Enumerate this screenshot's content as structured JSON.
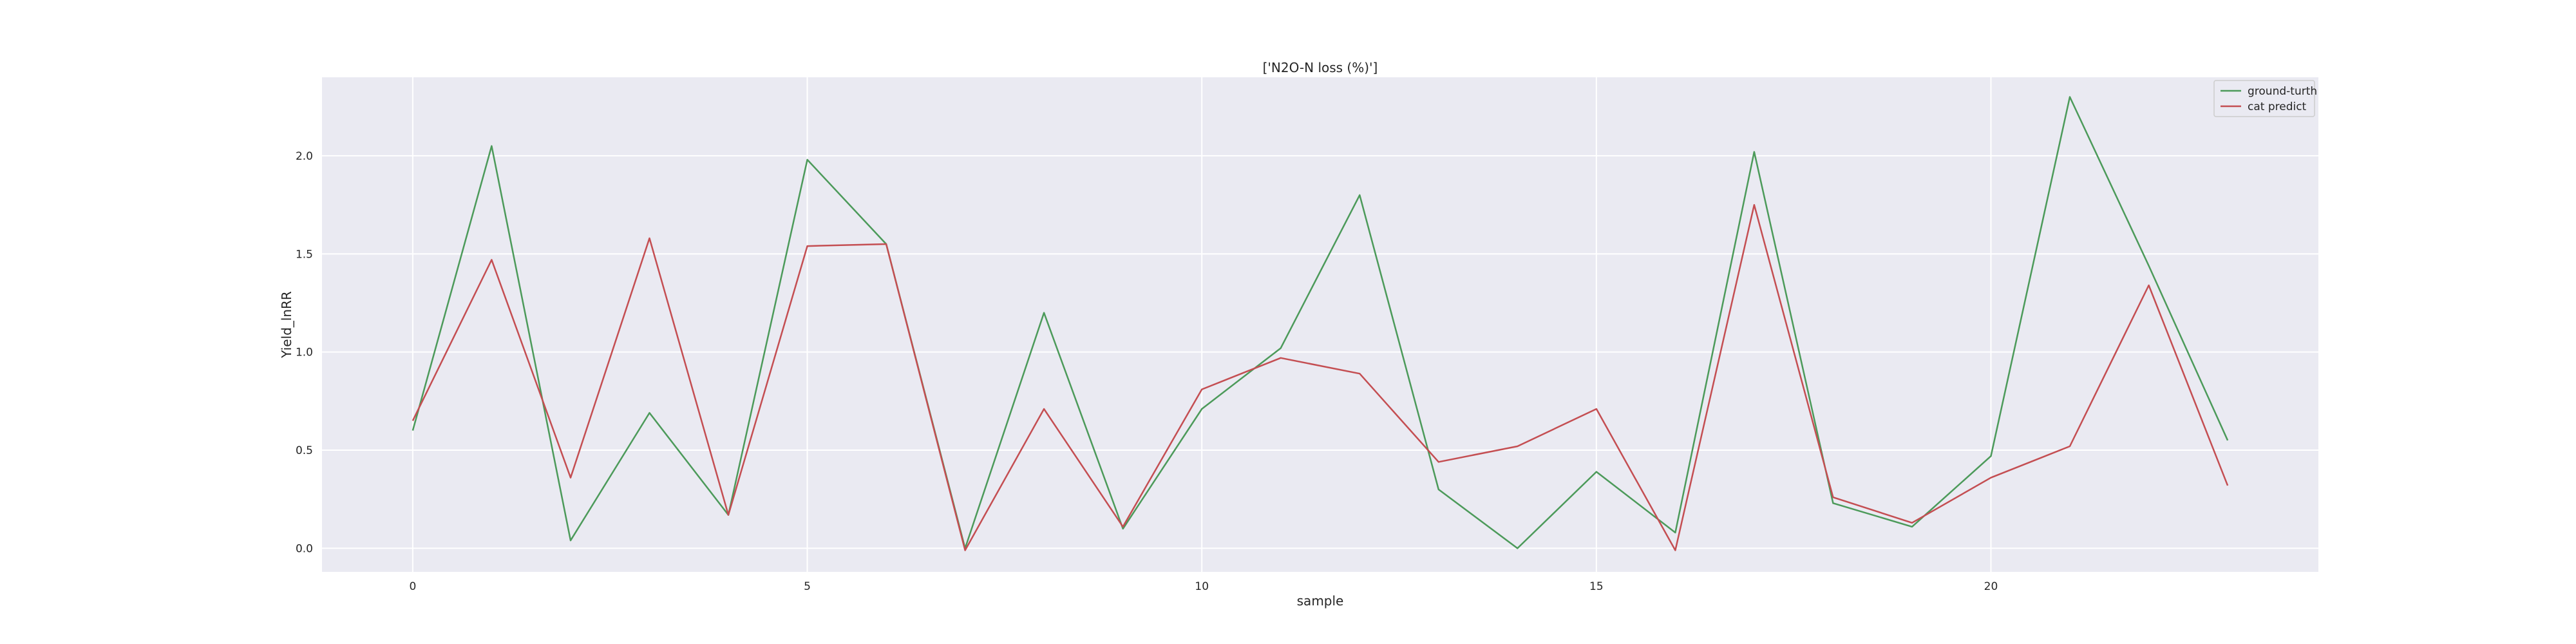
{
  "chart_data": {
    "type": "line",
    "title": "['N2O-N loss (%)']",
    "xlabel": "sample",
    "ylabel": "Yield_lnRR",
    "xlim": [
      -1.15,
      24.15
    ],
    "ylim": [
      -0.12,
      2.4
    ],
    "x_ticks": [
      0,
      5,
      10,
      15,
      20
    ],
    "y_ticks": [
      0.0,
      0.5,
      1.0,
      1.5,
      2.0
    ],
    "x_tick_labels": [
      "0",
      "5",
      "10",
      "15",
      "20"
    ],
    "y_tick_labels": [
      "0.0",
      "0.5",
      "1.0",
      "1.5",
      "2.0"
    ],
    "grid": true,
    "legend_position": "top-right",
    "x": [
      0,
      1,
      2,
      3,
      4,
      5,
      6,
      7,
      8,
      9,
      10,
      11,
      12,
      13,
      14,
      15,
      16,
      17,
      18,
      19,
      20,
      21,
      22,
      23
    ],
    "series": [
      {
        "name": "ground-turth",
        "color": "#4c9a5a",
        "values": [
          0.6,
          2.05,
          0.04,
          0.69,
          0.17,
          1.98,
          1.55,
          0.0,
          1.2,
          0.1,
          0.71,
          1.02,
          1.8,
          0.3,
          0.0,
          0.39,
          0.08,
          2.02,
          0.23,
          0.11,
          0.47,
          2.3,
          1.44,
          0.55
        ]
      },
      {
        "name": "cat predict",
        "color": "#c44e52",
        "values": [
          0.65,
          1.47,
          0.36,
          1.58,
          0.17,
          1.54,
          1.55,
          -0.01,
          0.71,
          0.11,
          0.81,
          0.97,
          0.89,
          0.44,
          0.52,
          0.71,
          -0.01,
          1.75,
          0.26,
          0.13,
          0.36,
          0.52,
          1.34,
          0.32
        ]
      }
    ]
  }
}
